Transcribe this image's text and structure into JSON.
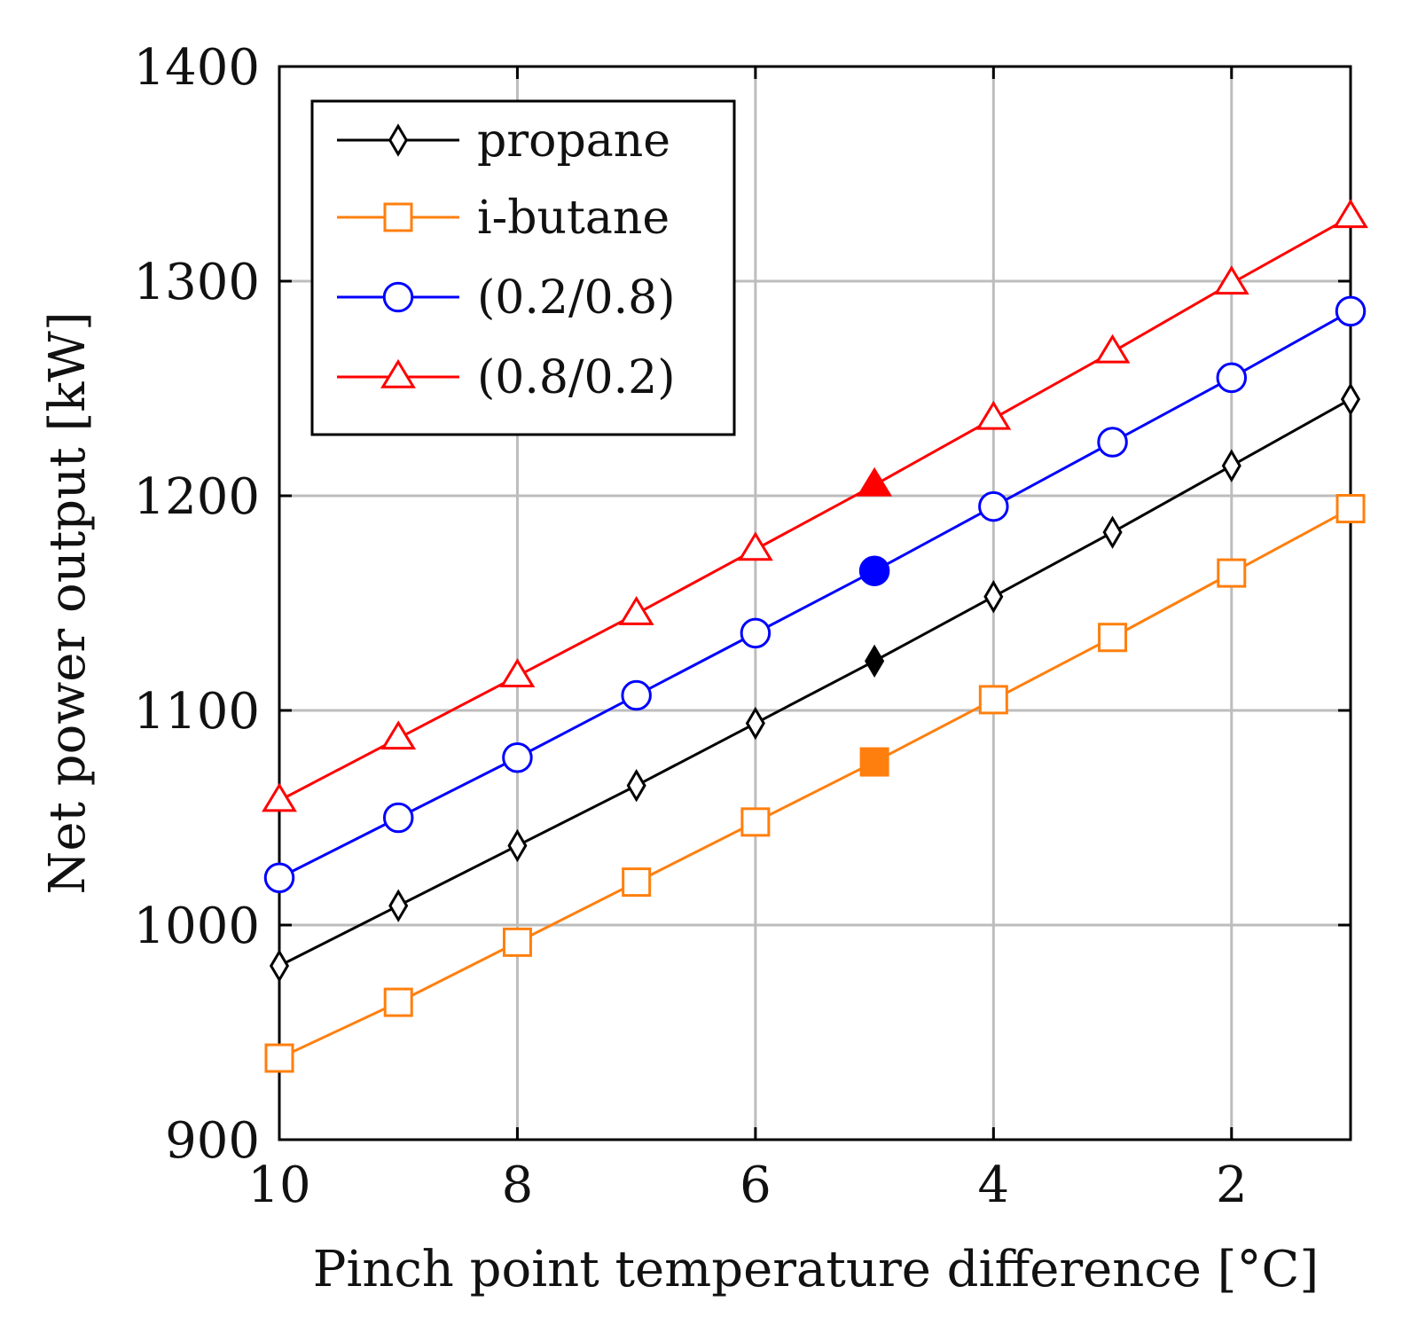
{
  "chart_data": {
    "type": "line",
    "title": "",
    "xlabel": "Pinch point temperature difference [°C]",
    "ylabel": "Net power output [kW]",
    "x": [
      10,
      9,
      8,
      7,
      6,
      5,
      4,
      3,
      2,
      1
    ],
    "xlim": [
      10,
      1
    ],
    "ylim": [
      900,
      1400
    ],
    "xticks": [
      10,
      8,
      6,
      4,
      2
    ],
    "xtick_labels": [
      "10",
      "8",
      "6",
      "4",
      "2"
    ],
    "yticks": [
      900,
      1000,
      1100,
      1200,
      1300,
      1400
    ],
    "ytick_labels": [
      "900",
      "1000",
      "1100",
      "1200",
      "1300",
      "1400"
    ],
    "grid": true,
    "legend_position": "top-left",
    "highlighted_x": 5,
    "series": [
      {
        "name": "propane",
        "color": "#000000",
        "marker": "diamond",
        "values": [
          981,
          1009,
          1037,
          1065,
          1094,
          1123,
          1153,
          1183,
          1214,
          1245
        ]
      },
      {
        "name": "i-butane",
        "color": "#ff7f0e",
        "marker": "square",
        "values": [
          938,
          964,
          992,
          1020,
          1048,
          1076,
          1105,
          1134,
          1164,
          1194
        ]
      },
      {
        "name": "(0.2/0.8)",
        "color": "#0000ff",
        "marker": "circle",
        "values": [
          1022,
          1050,
          1078,
          1107,
          1136,
          1165,
          1195,
          1225,
          1255,
          1286
        ]
      },
      {
        "name": "(0.8/0.2)",
        "color": "#ff0000",
        "marker": "triangle",
        "values": [
          1058,
          1087,
          1116,
          1145,
          1175,
          1205,
          1236,
          1267,
          1299,
          1330
        ]
      }
    ]
  }
}
